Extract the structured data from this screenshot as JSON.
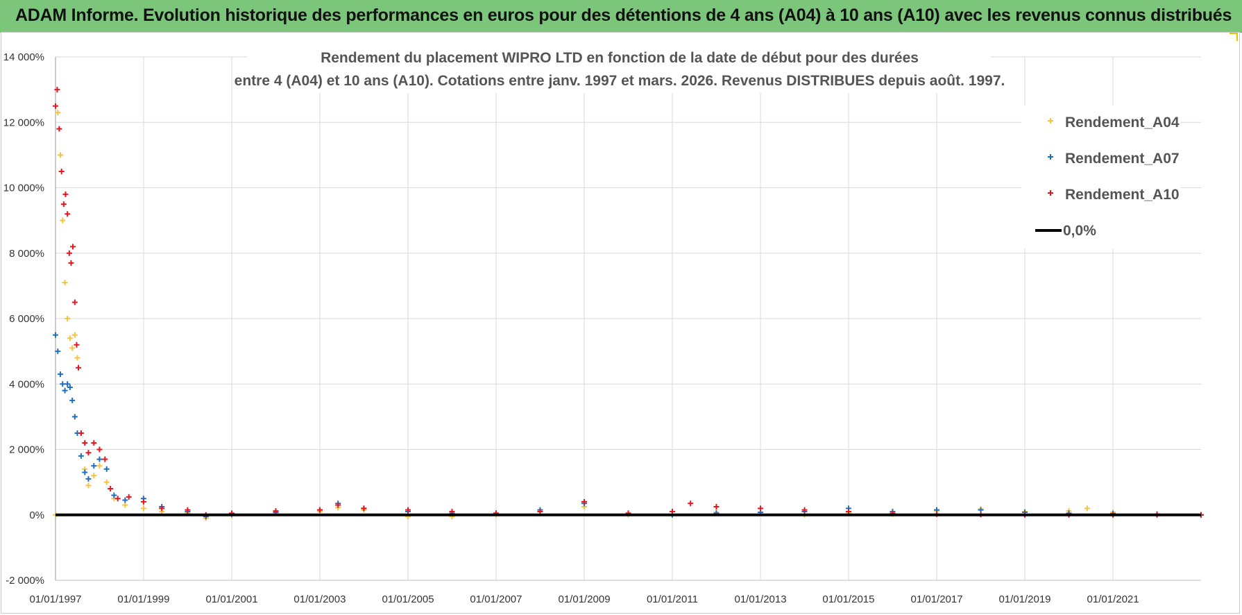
{
  "banner": {
    "title": "ADAM Informe. Evolution historique des performances en euros pour des détentions de 4 ans (A04) à 10 ans (A10) avec les revenus connus distribués"
  },
  "colors": {
    "banner_bg": "#7bc67b",
    "A04": "#f5c242",
    "A07": "#1f6fbf",
    "A10": "#e8141e",
    "zero_line": "#000000"
  },
  "chart_data": {
    "type": "scatter",
    "title": "Rendement du placement WIPRO LTD en fonction de la date de début pour des durées",
    "subtitle": "entre 4 (A04) et 10 ans (A10). Cotations entre janv. 1997 et mars. 2026. Revenus DISTRIBUES depuis août. 1997.",
    "xlabel": "",
    "ylabel": "",
    "x_ticks": [
      "01/01/1997",
      "01/01/1999",
      "01/01/2001",
      "01/01/2003",
      "01/01/2005",
      "01/01/2007",
      "01/01/2009",
      "01/01/2011",
      "01/01/2013",
      "01/01/2015",
      "01/01/2017",
      "01/01/2019",
      "01/01/2021"
    ],
    "y_ticks": [
      "-2 000%",
      "0%",
      "2 000%",
      "4 000%",
      "6 000%",
      "8 000%",
      "10 000%",
      "12 000%",
      "14 000%"
    ],
    "xlim": [
      "1997-01-01",
      "2023-01-01"
    ],
    "ylim": [
      -2000,
      14000
    ],
    "grid": true,
    "legend_position": "top-right",
    "series": [
      {
        "name": "Rendement_A04",
        "marker": "+",
        "points": [
          [
            "1997-01-01",
            0
          ],
          [
            "1997-01-20",
            12300
          ],
          [
            "1997-02-10",
            11000
          ],
          [
            "1997-03-01",
            9000
          ],
          [
            "1997-03-20",
            7100
          ],
          [
            "1997-04-10",
            6000
          ],
          [
            "1997-05-01",
            5400
          ],
          [
            "1997-05-20",
            5100
          ],
          [
            "1997-06-10",
            5500
          ],
          [
            "1997-07-01",
            4800
          ],
          [
            "1997-08-01",
            2500
          ],
          [
            "1997-09-01",
            1400
          ],
          [
            "1997-10-01",
            900
          ],
          [
            "1997-11-15",
            1200
          ],
          [
            "1998-01-01",
            1500
          ],
          [
            "1998-03-01",
            1000
          ],
          [
            "1998-05-01",
            500
          ],
          [
            "1998-08-01",
            300
          ],
          [
            "1999-01-01",
            200
          ],
          [
            "1999-06-01",
            100
          ],
          [
            "2000-01-01",
            50
          ],
          [
            "2000-06-01",
            -100
          ],
          [
            "2001-01-01",
            -20
          ],
          [
            "2002-01-01",
            60
          ],
          [
            "2003-01-01",
            100
          ],
          [
            "2003-06-01",
            220
          ],
          [
            "2004-01-01",
            150
          ],
          [
            "2005-01-01",
            -50
          ],
          [
            "2006-01-01",
            -50
          ],
          [
            "2007-01-01",
            0
          ],
          [
            "2008-01-01",
            100
          ],
          [
            "2009-01-01",
            250
          ],
          [
            "2010-01-01",
            0
          ],
          [
            "2011-01-01",
            20
          ],
          [
            "2012-01-01",
            80
          ],
          [
            "2013-01-01",
            60
          ],
          [
            "2014-01-01",
            0
          ],
          [
            "2015-01-01",
            50
          ],
          [
            "2016-01-01",
            20
          ],
          [
            "2017-01-01",
            120
          ],
          [
            "2018-01-01",
            180
          ],
          [
            "2019-01-01",
            100
          ],
          [
            "2020-01-01",
            120
          ],
          [
            "2020-06-01",
            200
          ],
          [
            "2021-01-01",
            80
          ],
          [
            "2022-01-01",
            20
          ],
          [
            "2023-01-01",
            0
          ]
        ]
      },
      {
        "name": "Rendement_A07",
        "marker": "+",
        "points": [
          [
            "1997-01-01",
            5500
          ],
          [
            "1997-01-20",
            5000
          ],
          [
            "1997-02-10",
            4300
          ],
          [
            "1997-03-01",
            4000
          ],
          [
            "1997-03-20",
            3800
          ],
          [
            "1997-04-10",
            4000
          ],
          [
            "1997-05-01",
            3900
          ],
          [
            "1997-05-20",
            3500
          ],
          [
            "1997-06-10",
            3000
          ],
          [
            "1997-07-01",
            2500
          ],
          [
            "1997-08-01",
            1800
          ],
          [
            "1997-09-01",
            1300
          ],
          [
            "1997-10-01",
            1100
          ],
          [
            "1997-11-15",
            1500
          ],
          [
            "1998-01-01",
            1700
          ],
          [
            "1998-03-01",
            1400
          ],
          [
            "1998-05-01",
            600
          ],
          [
            "1998-08-01",
            450
          ],
          [
            "1999-01-01",
            500
          ],
          [
            "1999-06-01",
            250
          ],
          [
            "2000-01-01",
            100
          ],
          [
            "2000-06-01",
            -50
          ],
          [
            "2001-01-01",
            20
          ],
          [
            "2002-01-01",
            80
          ],
          [
            "2003-01-01",
            150
          ],
          [
            "2003-06-01",
            350
          ],
          [
            "2004-01-01",
            200
          ],
          [
            "2005-01-01",
            100
          ],
          [
            "2006-01-01",
            50
          ],
          [
            "2007-01-01",
            50
          ],
          [
            "2008-01-01",
            150
          ],
          [
            "2009-01-01",
            350
          ],
          [
            "2010-01-01",
            50
          ],
          [
            "2011-01-01",
            0
          ],
          [
            "2012-01-01",
            50
          ],
          [
            "2013-01-01",
            80
          ],
          [
            "2014-01-01",
            100
          ],
          [
            "2015-01-01",
            200
          ],
          [
            "2016-01-01",
            100
          ],
          [
            "2017-01-01",
            150
          ],
          [
            "2018-01-01",
            150
          ],
          [
            "2019-01-01",
            80
          ],
          [
            "2020-01-01",
            50
          ],
          [
            "2021-01-01",
            40
          ],
          [
            "2022-01-01",
            20
          ],
          [
            "2023-01-01",
            0
          ]
        ]
      },
      {
        "name": "Rendement_A10",
        "marker": "+",
        "points": [
          [
            "1997-01-01",
            12500
          ],
          [
            "1997-01-15",
            13000
          ],
          [
            "1997-02-01",
            11800
          ],
          [
            "1997-02-20",
            10500
          ],
          [
            "1997-03-10",
            9500
          ],
          [
            "1997-03-25",
            9800
          ],
          [
            "1997-04-10",
            9200
          ],
          [
            "1997-04-25",
            8000
          ],
          [
            "1997-05-10",
            7700
          ],
          [
            "1997-05-25",
            8200
          ],
          [
            "1997-06-10",
            6500
          ],
          [
            "1997-06-25",
            5200
          ],
          [
            "1997-07-10",
            4500
          ],
          [
            "1997-08-01",
            2500
          ],
          [
            "1997-09-01",
            2200
          ],
          [
            "1997-10-01",
            1900
          ],
          [
            "1997-11-15",
            2200
          ],
          [
            "1998-01-01",
            2000
          ],
          [
            "1998-02-15",
            1700
          ],
          [
            "1998-04-01",
            800
          ],
          [
            "1998-06-01",
            500
          ],
          [
            "1998-09-01",
            550
          ],
          [
            "1999-01-01",
            400
          ],
          [
            "1999-06-01",
            200
          ],
          [
            "2000-01-01",
            150
          ],
          [
            "2000-06-01",
            0
          ],
          [
            "2001-01-01",
            50
          ],
          [
            "2002-01-01",
            120
          ],
          [
            "2003-01-01",
            150
          ],
          [
            "2003-06-01",
            300
          ],
          [
            "2004-01-01",
            200
          ],
          [
            "2005-01-01",
            150
          ],
          [
            "2006-01-01",
            100
          ],
          [
            "2007-01-01",
            50
          ],
          [
            "2008-01-01",
            100
          ],
          [
            "2009-01-01",
            400
          ],
          [
            "2010-01-01",
            50
          ],
          [
            "2011-01-01",
            100
          ],
          [
            "2011-06-01",
            350
          ],
          [
            "2012-01-01",
            250
          ],
          [
            "2013-01-01",
            200
          ],
          [
            "2014-01-01",
            150
          ],
          [
            "2015-01-01",
            100
          ],
          [
            "2016-01-01",
            50
          ],
          [
            "2017-01-01",
            20
          ],
          [
            "2018-01-01",
            10
          ],
          [
            "2019-01-01",
            0
          ],
          [
            "2020-01-01",
            0
          ],
          [
            "2021-01-01",
            0
          ],
          [
            "2022-01-01",
            0
          ],
          [
            "2023-01-01",
            0
          ]
        ]
      },
      {
        "name": "0,0%",
        "type": "line",
        "points": [
          [
            "1997-01-01",
            0
          ],
          [
            "2023-01-01",
            0
          ]
        ]
      }
    ]
  }
}
